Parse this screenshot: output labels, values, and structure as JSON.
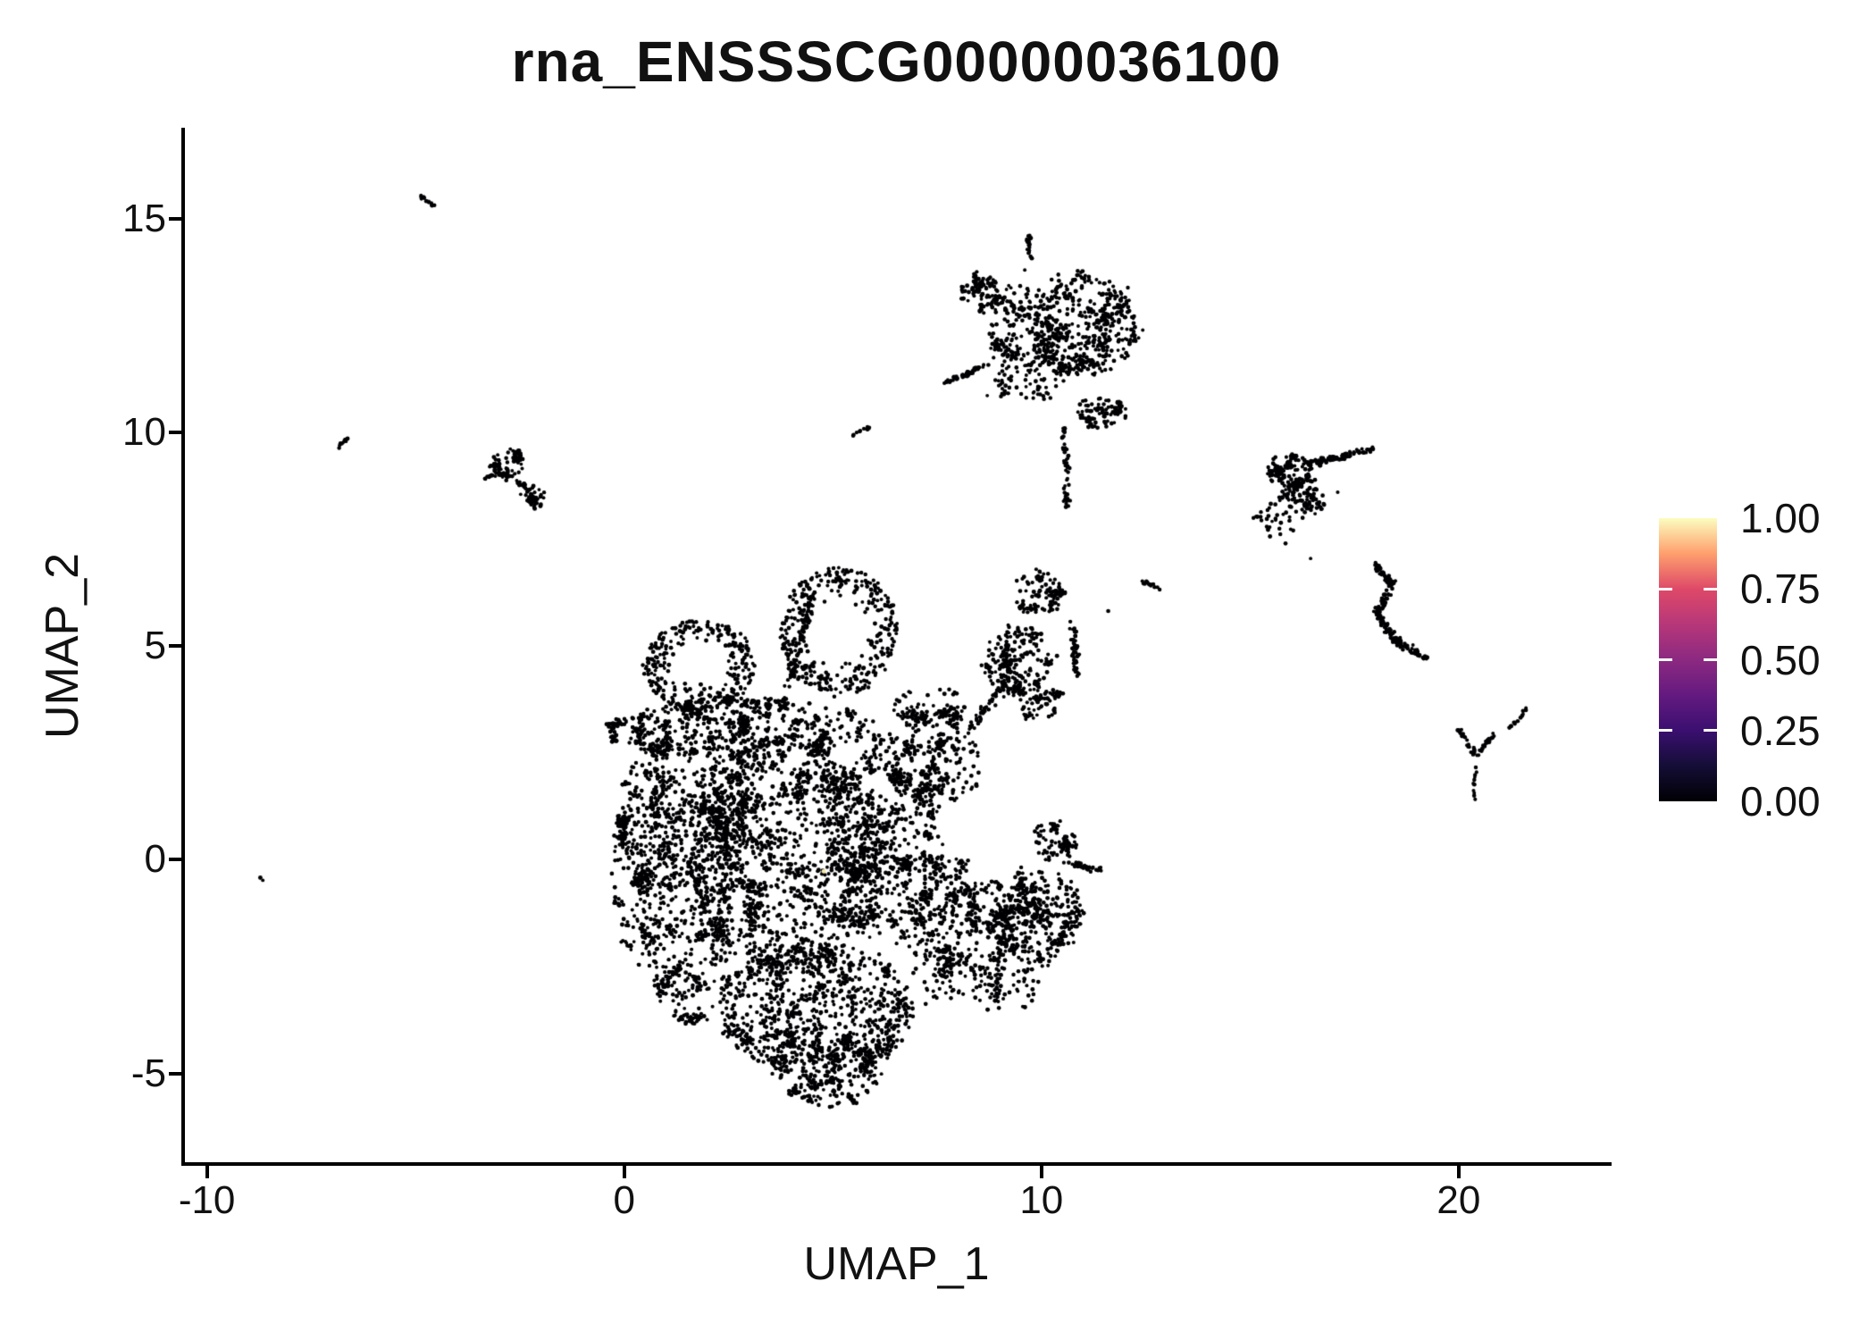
{
  "title": "rna_ENSSSCG00000036100",
  "x_axis": {
    "label": "UMAP_1",
    "range": [
      -10.57,
      23.62
    ],
    "ticks": [
      -10,
      0,
      10,
      20
    ],
    "tick_labels": [
      "-10",
      "0",
      "10",
      "20"
    ]
  },
  "y_axis": {
    "label": "UMAP_2",
    "range": [
      -7.12,
      17.13
    ],
    "ticks": [
      15,
      10,
      5,
      0,
      -5
    ],
    "tick_labels": [
      "15",
      "10",
      "5",
      "0",
      "-5"
    ]
  },
  "legend": {
    "labels": [
      "1.00",
      "0.75",
      "0.50",
      "0.25",
      "0.00"
    ],
    "values": [
      1.0,
      0.75,
      0.5,
      0.25,
      0.0
    ]
  },
  "chart_data": {
    "type": "scatter",
    "title": "rna_ENSSSCG00000036100",
    "xlabel": "UMAP_1",
    "ylabel": "UMAP_2",
    "xlim": [
      -10.57,
      23.62
    ],
    "ylim": [
      -7.12,
      17.13
    ],
    "grid": false,
    "legend_position": "right",
    "point_color": "#000004",
    "point_radius_px": [
      1.9,
      2.5
    ],
    "colorbar": {
      "scale": "magma",
      "min": 0.0,
      "max": 1.0,
      "stops": [
        [
          0,
          "#000004"
        ],
        [
          0.125,
          "#140e36"
        ],
        [
          0.25,
          "#3b0f70"
        ],
        [
          0.375,
          "#641a80"
        ],
        [
          0.5,
          "#8c2981"
        ],
        [
          0.625,
          "#b73779"
        ],
        [
          0.75,
          "#de4968"
        ],
        [
          0.875,
          "#fe9f6d"
        ],
        [
          1,
          "#fcfdbf"
        ]
      ]
    },
    "clusters": [
      {
        "kind": "ring",
        "cx": 1.8,
        "cy": 4.55,
        "rx": 1.35,
        "ry": 1.05,
        "hole": 0.45,
        "n": 300
      },
      {
        "kind": "ring",
        "cx": 5.15,
        "cy": 5.35,
        "rx": 1.4,
        "ry": 1.5,
        "hole": 0.5,
        "n": 340
      },
      {
        "kind": "strand",
        "x1": 3.95,
        "y1": 4.1,
        "x2": 4.5,
        "y2": 6.2,
        "w": 0.18,
        "n": 90
      },
      {
        "kind": "blob",
        "cx": 2.9,
        "cy": 3.05,
        "rx": 3.35,
        "ry": 0.7,
        "n": 780,
        "clump": 0.12
      },
      {
        "kind": "blob",
        "cx": 0.45,
        "cy": -0.1,
        "rx": 0.75,
        "ry": 2.5,
        "n": 380,
        "clump": 0.15
      },
      {
        "kind": "blob",
        "cx": 1.6,
        "cy": 0.9,
        "rx": 1.8,
        "ry": 2.1,
        "n": 700,
        "clump": 0.2
      },
      {
        "kind": "blob",
        "cx": 3.9,
        "cy": 0.1,
        "rx": 2.3,
        "ry": 2.7,
        "n": 1450,
        "clump": 0.25
      },
      {
        "kind": "blob",
        "cx": 6.3,
        "cy": 0.5,
        "rx": 1.35,
        "ry": 2.5,
        "n": 640,
        "clump": 0.2
      },
      {
        "kind": "blob",
        "cx": 7.4,
        "cy": 2.3,
        "rx": 1.15,
        "ry": 1.05,
        "n": 270,
        "clump": 0.18
      },
      {
        "kind": "blob",
        "cx": 7.35,
        "cy": 3.55,
        "rx": 0.95,
        "ry": 0.5,
        "n": 110,
        "clump": 0.15
      },
      {
        "kind": "blob",
        "cx": 8.0,
        "cy": -1.7,
        "rx": 1.3,
        "ry": 1.75,
        "n": 520,
        "clump": 0.22
      },
      {
        "kind": "blob",
        "cx": 4.6,
        "cy": -3.5,
        "rx": 2.35,
        "ry": 1.55,
        "n": 950,
        "clump": 0.22
      },
      {
        "kind": "blob",
        "cx": 4.9,
        "cy": -5.0,
        "rx": 1.35,
        "ry": 0.75,
        "n": 280,
        "clump": 0.15
      },
      {
        "kind": "blob",
        "cx": 1.6,
        "cy": -2.5,
        "rx": 1.1,
        "ry": 1.3,
        "n": 300,
        "clump": 0.18
      },
      {
        "kind": "strand",
        "x1": 8.3,
        "y1": 3.1,
        "x2": 9.15,
        "y2": 4.1,
        "w": 0.22,
        "n": 45
      },
      {
        "kind": "points",
        "color": "#F5E9A6",
        "r": 2.4,
        "pts": [
          [
            4.78,
            -0.27
          ]
        ]
      },
      {
        "kind": "blob",
        "cx": 9.4,
        "cy": 4.7,
        "rx": 0.8,
        "ry": 0.85,
        "n": 230,
        "clump": 0.18
      },
      {
        "kind": "blob",
        "cx": 9.9,
        "cy": 6.25,
        "rx": 0.6,
        "ry": 0.5,
        "n": 110,
        "clump": 0.15
      },
      {
        "kind": "strand",
        "x1": 10.75,
        "y1": 5.6,
        "x2": 10.85,
        "y2": 4.3,
        "w": 0.15,
        "n": 50
      },
      {
        "kind": "blob",
        "cx": 9.95,
        "cy": 3.7,
        "rx": 0.55,
        "ry": 0.4,
        "n": 80,
        "clump": 0.12
      },
      {
        "kind": "blob",
        "cx": 10.0,
        "cy": -1.35,
        "rx": 1.05,
        "ry": 1.15,
        "n": 430,
        "clump": 0.22
      },
      {
        "kind": "blob",
        "cx": 10.35,
        "cy": 0.4,
        "rx": 0.5,
        "ry": 0.55,
        "n": 90,
        "clump": 0.15
      },
      {
        "kind": "strand",
        "x1": 10.7,
        "y1": -0.1,
        "x2": 11.45,
        "y2": -0.25,
        "w": 0.12,
        "n": 35
      },
      {
        "kind": "blob",
        "cx": 9.3,
        "cy": -3.0,
        "rx": 0.6,
        "ry": 0.55,
        "n": 60,
        "clump": 0.3
      },
      {
        "kind": "blob",
        "cx": 11.0,
        "cy": 12.5,
        "rx": 1.3,
        "ry": 1.2,
        "n": 520,
        "clump": 0.22
      },
      {
        "kind": "blob",
        "cx": 9.55,
        "cy": 12.4,
        "rx": 0.85,
        "ry": 1.05,
        "n": 210,
        "clump": 0.3
      },
      {
        "kind": "blob",
        "cx": 11.4,
        "cy": 10.45,
        "rx": 0.65,
        "ry": 0.38,
        "n": 90,
        "clump": 0.15
      },
      {
        "kind": "blob",
        "cx": 8.55,
        "cy": 13.3,
        "rx": 0.52,
        "ry": 0.38,
        "n": 115,
        "clump": 0.12
      },
      {
        "kind": "strand",
        "x1": 9.75,
        "y1": 13.95,
        "x2": 9.68,
        "y2": 14.6,
        "w": 0.09,
        "n": 22
      },
      {
        "kind": "strand",
        "x1": 7.62,
        "y1": 11.12,
        "x2": 8.7,
        "y2": 11.6,
        "w": 0.1,
        "n": 42
      },
      {
        "kind": "strand",
        "x1": 10.55,
        "y1": 10.2,
        "x2": 10.62,
        "y2": 8.2,
        "w": 0.14,
        "n": 46
      },
      {
        "kind": "blob",
        "cx": 9.8,
        "cy": 11.2,
        "rx": 0.85,
        "ry": 0.55,
        "n": 70,
        "clump": 0.35
      },
      {
        "kind": "blob",
        "cx": -2.75,
        "cy": 9.25,
        "rx": 0.45,
        "ry": 0.33,
        "n": 85,
        "clump": 0.12
      },
      {
        "kind": "blob",
        "cx": -2.2,
        "cy": 8.5,
        "rx": 0.34,
        "ry": 0.3,
        "n": 55,
        "clump": 0.12
      },
      {
        "kind": "strand",
        "x1": -3.35,
        "y1": 8.9,
        "x2": -2.95,
        "y2": 9.1,
        "w": 0.1,
        "n": 14
      },
      {
        "kind": "strand",
        "x1": -2.6,
        "y1": 8.85,
        "x2": -2.35,
        "y2": 8.75,
        "w": 0.09,
        "n": 10
      },
      {
        "kind": "blob",
        "cx": 15.95,
        "cy": 9.1,
        "rx": 0.55,
        "ry": 0.42,
        "n": 160,
        "clump": 0.1
      },
      {
        "kind": "strand",
        "x1": 16.35,
        "y1": 9.25,
        "x2": 17.95,
        "y2": 9.6,
        "w": 0.14,
        "n": 85
      },
      {
        "kind": "blob",
        "cx": 16.2,
        "cy": 8.35,
        "rx": 0.6,
        "ry": 0.5,
        "n": 90,
        "clump": 0.25
      },
      {
        "kind": "blob",
        "cx": 15.6,
        "cy": 7.9,
        "rx": 0.5,
        "ry": 0.35,
        "n": 30,
        "clump": 0.4
      },
      {
        "kind": "strand",
        "x1": 17.95,
        "y1": 6.95,
        "x2": 18.4,
        "y2": 6.5,
        "w": 0.15,
        "n": 45
      },
      {
        "kind": "strand",
        "x1": 18.4,
        "y1": 6.5,
        "x2": 18.05,
        "y2": 5.75,
        "w": 0.16,
        "n": 50
      },
      {
        "kind": "strand",
        "x1": 18.05,
        "y1": 5.75,
        "x2": 18.5,
        "y2": 5.1,
        "w": 0.16,
        "n": 50
      },
      {
        "kind": "strand",
        "x1": 18.5,
        "y1": 5.1,
        "x2": 19.25,
        "y2": 4.7,
        "w": 0.15,
        "n": 45
      },
      {
        "kind": "strand",
        "x1": 20.0,
        "y1": 3.05,
        "x2": 20.42,
        "y2": 2.45,
        "w": 0.09,
        "n": 26
      },
      {
        "kind": "strand",
        "x1": 20.85,
        "y1": 2.95,
        "x2": 20.45,
        "y2": 2.45,
        "w": 0.09,
        "n": 22
      },
      {
        "kind": "strand",
        "x1": 20.42,
        "y1": 2.3,
        "x2": 20.35,
        "y2": 1.3,
        "w": 0.07,
        "n": 11
      },
      {
        "kind": "strand",
        "x1": 21.25,
        "y1": 3.1,
        "x2": 21.6,
        "y2": 3.5,
        "w": 0.08,
        "n": 14
      },
      {
        "kind": "strand",
        "x1": -4.85,
        "y1": 15.52,
        "x2": -4.55,
        "y2": 15.28,
        "w": 0.07,
        "n": 12
      },
      {
        "kind": "strand",
        "x1": -6.95,
        "y1": 9.6,
        "x2": -6.65,
        "y2": 9.82,
        "w": 0.07,
        "n": 10
      },
      {
        "kind": "strand",
        "x1": 5.5,
        "y1": 9.95,
        "x2": 5.92,
        "y2": 10.14,
        "w": 0.07,
        "n": 12
      },
      {
        "kind": "strand",
        "x1": 12.3,
        "y1": 6.55,
        "x2": 12.95,
        "y2": 6.3,
        "w": 0.08,
        "n": 12
      },
      {
        "kind": "points",
        "pts": [
          [
            -8.72,
            -0.42
          ],
          [
            -8.66,
            -0.48
          ],
          [
            11.6,
            5.82
          ],
          [
            9.6,
            13.8
          ],
          [
            16.45,
            7.05
          ],
          [
            15.08,
            8.0
          ],
          [
            17.1,
            8.6
          ],
          [
            12.68,
            6.45
          ]
        ]
      }
    ]
  }
}
